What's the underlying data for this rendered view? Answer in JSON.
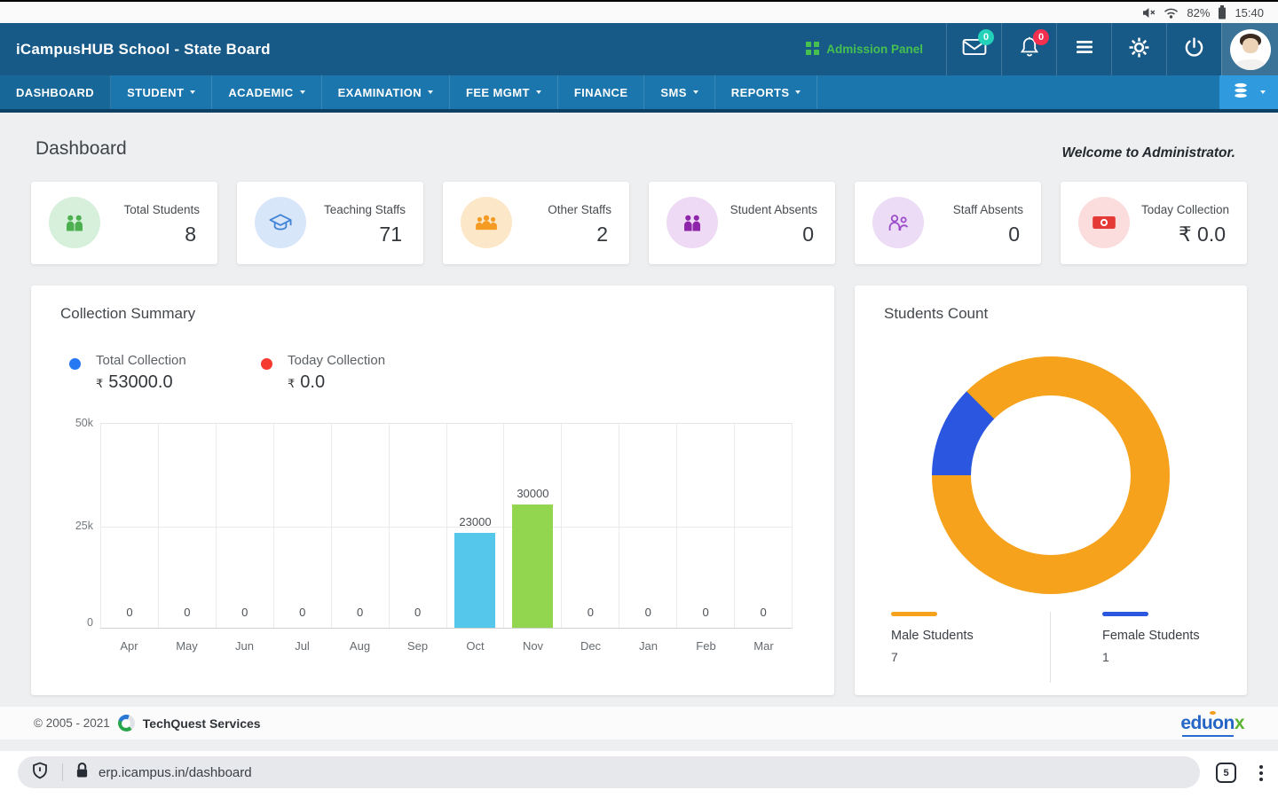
{
  "status": {
    "battery_level": "82%",
    "time": "15:40"
  },
  "header": {
    "title": "iCampusHUB School - State Board",
    "admission_panel": "Admission Panel",
    "mail_badge": "0",
    "notification_badge": "0"
  },
  "nav": {
    "items": [
      {
        "label": "DASHBOARD",
        "has_dropdown": false,
        "active": true
      },
      {
        "label": "STUDENT",
        "has_dropdown": true
      },
      {
        "label": "ACADEMIC",
        "has_dropdown": true
      },
      {
        "label": "EXAMINATION",
        "has_dropdown": true
      },
      {
        "label": "FEE MGMT",
        "has_dropdown": true
      },
      {
        "label": "FINANCE",
        "has_dropdown": false
      },
      {
        "label": "SMS",
        "has_dropdown": true
      },
      {
        "label": "REPORTS",
        "has_dropdown": true
      }
    ]
  },
  "page": {
    "title": "Dashboard",
    "welcome": "Welcome to Administrator."
  },
  "stat_cards": [
    {
      "label": "Total Students",
      "value": "8",
      "icon": "students-icon",
      "icon_bg": "#d7f0dc",
      "icon_color": "#4caf50"
    },
    {
      "label": "Teaching Staffs",
      "value": "71",
      "icon": "graduation-cap-icon",
      "icon_bg": "#d8e6fa",
      "icon_color": "#4285d6"
    },
    {
      "label": "Other Staffs",
      "value": "2",
      "icon": "group-icon",
      "icon_bg": "#fce8c8",
      "icon_color": "#f59a23"
    },
    {
      "label": "Student Absents",
      "value": "0",
      "icon": "absent-students-icon",
      "icon_bg": "#eedaf4",
      "icon_color": "#8e24aa"
    },
    {
      "label": "Staff Absents",
      "value": "0",
      "icon": "absent-staff-icon",
      "icon_bg": "#ecdcf6",
      "icon_color": "#9c4dcc"
    },
    {
      "label": "Today Collection",
      "value": "₹ 0.0",
      "icon": "money-icon",
      "icon_bg": "#fbdddd",
      "icon_color": "#e53935"
    }
  ],
  "collection_summary": {
    "title": "Collection Summary",
    "legend": [
      {
        "label": "Total Collection",
        "currency": "₹",
        "amount": "53000.0",
        "color": "#2678f3"
      },
      {
        "label": "Today Collection",
        "currency": "₹",
        "amount": "0.0",
        "color": "#f53a30"
      }
    ]
  },
  "students_count": {
    "title": "Students Count",
    "legend": [
      {
        "label": "Male Students",
        "value": "7",
        "color": "#f6a21c"
      },
      {
        "label": "Female Students",
        "value": "1",
        "color": "#2b57e0"
      }
    ]
  },
  "chart_data": [
    {
      "type": "bar",
      "title": "Collection Summary",
      "categories": [
        "Apr",
        "May",
        "Jun",
        "Jul",
        "Aug",
        "Sep",
        "Oct",
        "Nov",
        "Dec",
        "Jan",
        "Feb",
        "Mar"
      ],
      "values": [
        0,
        0,
        0,
        0,
        0,
        0,
        23000,
        30000,
        0,
        0,
        0,
        0
      ],
      "bar_colors": [
        null,
        null,
        null,
        null,
        null,
        null,
        "#54c7ea",
        "#92d54e",
        null,
        null,
        null,
        null
      ],
      "xlabel": "",
      "ylabel": "",
      "ylim": [
        0,
        50000
      ],
      "yticks": [
        "50k",
        "25k",
        "0"
      ],
      "grid": true,
      "value_labels": true,
      "legend_position": "top"
    },
    {
      "type": "donut",
      "title": "Students Count",
      "labels": [
        "Male Students",
        "Female Students"
      ],
      "values": [
        7,
        1
      ],
      "colors": [
        "#f6a21c",
        "#2b57e0"
      ],
      "legend_position": "bottom"
    }
  ],
  "footer": {
    "copyright": "© 2005 - 2021",
    "company": "TechQuest Services",
    "brand_main": "eduon",
    "brand_x": "x"
  },
  "browser": {
    "url": "erp.icampus.in/dashboard",
    "tab_count": "5"
  }
}
